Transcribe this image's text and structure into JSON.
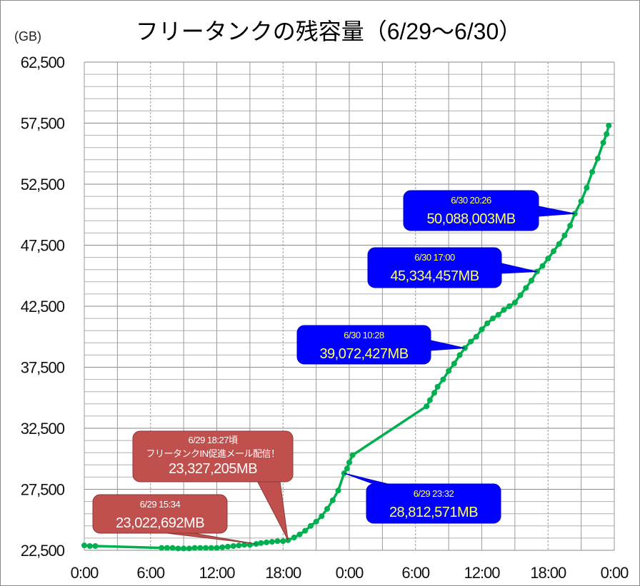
{
  "chart_data": {
    "type": "line",
    "title": "フリータンクの残容量（6/29～6/30）",
    "ylabel": "(GB)",
    "xlabel": "",
    "ylim": [
      22500,
      62500
    ],
    "y_ticks": [
      "22,500",
      "27,500",
      "32,500",
      "37,500",
      "42,500",
      "47,500",
      "52,500",
      "57,500",
      "62,500"
    ],
    "y_tick_values": [
      22500,
      27500,
      32500,
      37500,
      42500,
      47500,
      52500,
      57500,
      62500
    ],
    "xlim_hours": [
      0,
      48
    ],
    "x_ticks": [
      "0:00",
      "6:00",
      "12:00",
      "18:00",
      "0:00",
      "6:00",
      "12:00",
      "18:00",
      "0:00"
    ],
    "x_tick_hours": [
      0,
      6,
      12,
      18,
      24,
      30,
      36,
      42,
      48
    ],
    "grid": true,
    "series": [
      {
        "name": "フリータンク残容量",
        "color": "#00b050",
        "points": [
          [
            0,
            22900
          ],
          [
            0.5,
            22850
          ],
          [
            1,
            22850
          ],
          [
            7,
            22700
          ],
          [
            7.5,
            22700
          ],
          [
            8,
            22700
          ],
          [
            8.5,
            22650
          ],
          [
            9,
            22650
          ],
          [
            9.5,
            22650
          ],
          [
            10,
            22700
          ],
          [
            10.5,
            22700
          ],
          [
            11,
            22700
          ],
          [
            11.5,
            22700
          ],
          [
            12,
            22700
          ],
          [
            12.5,
            22750
          ],
          [
            13,
            22800
          ],
          [
            13.5,
            22850
          ],
          [
            14,
            22900
          ],
          [
            14.5,
            22950
          ],
          [
            15,
            22950
          ],
          [
            15.57,
            23023
          ],
          [
            16,
            23100
          ],
          [
            16.5,
            23150
          ],
          [
            17,
            23200
          ],
          [
            17.5,
            23250
          ],
          [
            18,
            23250
          ],
          [
            18.45,
            23327
          ],
          [
            19,
            23550
          ],
          [
            19.5,
            23800
          ],
          [
            20,
            24100
          ],
          [
            20.5,
            24500
          ],
          [
            21,
            24850
          ],
          [
            21.5,
            25300
          ],
          [
            22,
            25900
          ],
          [
            22.5,
            26600
          ],
          [
            23,
            27400
          ],
          [
            23.53,
            28813
          ],
          [
            23.8,
            29200
          ],
          [
            24,
            29700
          ],
          [
            24.3,
            30300
          ],
          [
            31,
            34300
          ],
          [
            31.3,
            34800
          ],
          [
            31.7,
            35400
          ],
          [
            32,
            35900
          ],
          [
            32.5,
            36500
          ],
          [
            33,
            37200
          ],
          [
            33.5,
            37800
          ],
          [
            34,
            38500
          ],
          [
            34.47,
            39072
          ],
          [
            35,
            39600
          ],
          [
            35.5,
            40000
          ],
          [
            36,
            40600
          ],
          [
            36.5,
            41100
          ],
          [
            37,
            41500
          ],
          [
            37.5,
            41800
          ],
          [
            38,
            42200
          ],
          [
            38.5,
            42500
          ],
          [
            39,
            42800
          ],
          [
            39.5,
            43400
          ],
          [
            40,
            44000
          ],
          [
            40.5,
            44600
          ],
          [
            41,
            45334
          ],
          [
            41.5,
            45800
          ],
          [
            42,
            46400
          ],
          [
            42.5,
            47000
          ],
          [
            43,
            47600
          ],
          [
            43.5,
            48300
          ],
          [
            44,
            49100
          ],
          [
            44.43,
            50088
          ],
          [
            45,
            51100
          ],
          [
            45.5,
            52200
          ],
          [
            46,
            53500
          ],
          [
            46.5,
            54600
          ],
          [
            47,
            55900
          ],
          [
            47.3,
            56600
          ],
          [
            47.5,
            57300
          ]
        ]
      }
    ],
    "annotations": [
      {
        "lines": [
          "6/29 15:34",
          "23,022,692MB"
        ],
        "hour": 15.57,
        "value": 23023,
        "bg": "#c0504d",
        "fg": "#ffffff"
      },
      {
        "lines": [
          "6/29 18:27頃",
          "フリータンクIN促進メール配信！",
          "23,327,205MB"
        ],
        "hour": 18.45,
        "value": 23327,
        "bg": "#c0504d",
        "fg": "#ffffff"
      },
      {
        "lines": [
          "6/29 23:32",
          "28,812,571MB"
        ],
        "hour": 23.53,
        "value": 28813,
        "bg": "#0000ff",
        "fg": "#ffff66"
      },
      {
        "lines": [
          "6/30 10:28",
          "39,072,427MB"
        ],
        "hour": 34.47,
        "value": 39072,
        "bg": "#0000ff",
        "fg": "#ffff66"
      },
      {
        "lines": [
          "6/30 17:00",
          "45,334,457MB"
        ],
        "hour": 41,
        "value": 45334,
        "bg": "#0000ff",
        "fg": "#ffff66"
      },
      {
        "lines": [
          "6/30 20:26",
          "50,088,003MB"
        ],
        "hour": 44.43,
        "value": 50088,
        "bg": "#0000ff",
        "fg": "#ffff66"
      }
    ]
  }
}
